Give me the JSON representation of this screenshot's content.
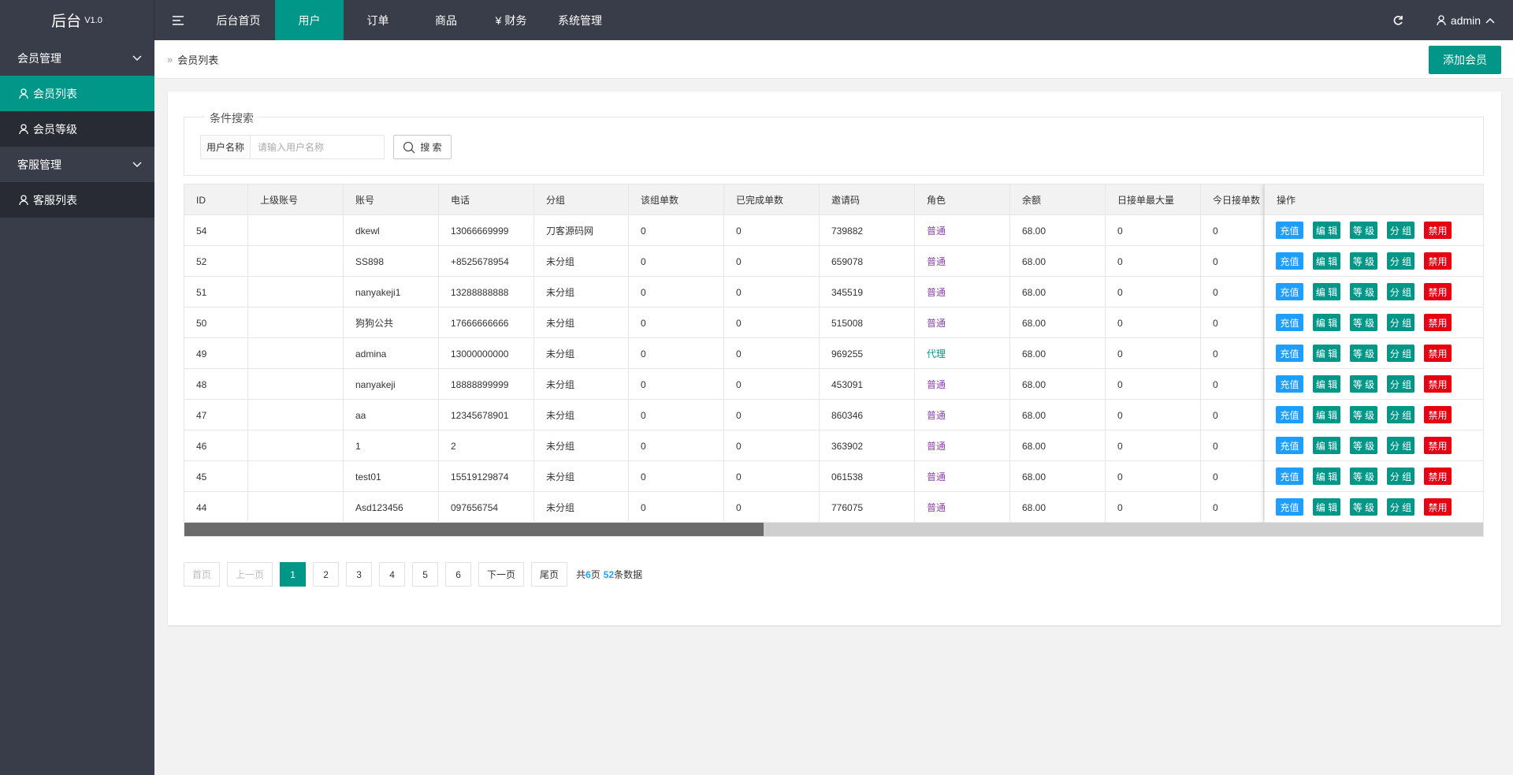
{
  "header": {
    "logo": "后台",
    "version": "V1.0",
    "nav": [
      "后台首页",
      "用户",
      "订单",
      "商品",
      "¥ 财务",
      "系统管理"
    ],
    "user": "admin"
  },
  "sidebar": [
    {
      "label": "会员管理",
      "items": [
        "会员列表",
        "会员等级"
      ]
    },
    {
      "label": "客服管理",
      "items": [
        "客服列表"
      ]
    }
  ],
  "breadcrumb": "会员列表",
  "add_button": "添加会员",
  "search": {
    "legend": "条件搜索",
    "label": "用户名称",
    "placeholder": "请输入用户名称",
    "button": "搜 索"
  },
  "table": {
    "columns": [
      "ID",
      "上级账号",
      "账号",
      "电话",
      "分组",
      "该组单数",
      "已完成单数",
      "邀请码",
      "角色",
      "余额",
      "日接单最大量",
      "今日接单数",
      "操作"
    ],
    "rows": [
      [
        "54",
        null,
        "dkewl",
        "13066669999",
        "刀客源码网",
        "0",
        "0",
        "739882",
        "普通",
        "68.00",
        "0",
        "0"
      ],
      [
        "52",
        null,
        "SS898",
        "+8525678954",
        "未分组",
        "0",
        "0",
        "659078",
        "普通",
        "68.00",
        "0",
        "0"
      ],
      [
        "51",
        null,
        "nanyakeji1",
        "13288888888",
        "未分组",
        "0",
        "0",
        "345519",
        "普通",
        "68.00",
        "0",
        "0"
      ],
      [
        "50",
        null,
        "狗狗公共",
        "17666666666",
        "未分组",
        "0",
        "0",
        "515008",
        "普通",
        "68.00",
        "0",
        "0"
      ],
      [
        "49",
        null,
        "admina",
        "13000000000",
        "未分组",
        "0",
        "0",
        "969255",
        "代理",
        "68.00",
        "0",
        "0"
      ],
      [
        "48",
        null,
        "nanyakeji",
        "18888899999",
        "未分组",
        "0",
        "0",
        "453091",
        "普通",
        "68.00",
        "0",
        "0"
      ],
      [
        "47",
        null,
        "aa",
        "12345678901",
        "未分组",
        "0",
        "0",
        "860346",
        "普通",
        "68.00",
        "0",
        "0"
      ],
      [
        "46",
        null,
        "1",
        "2",
        "未分组",
        "0",
        "0",
        "363902",
        "普通",
        "68.00",
        "0",
        "0"
      ],
      [
        "45",
        null,
        "test01",
        "15519129874",
        "未分组",
        "0",
        "0",
        "061538",
        "普通",
        "68.00",
        "0",
        "0"
      ],
      [
        "44",
        null,
        "Asd123456",
        "097656754",
        "未分组",
        "0",
        "0",
        "776075",
        "普通",
        "68.00",
        "0",
        "0"
      ]
    ],
    "actions": [
      "充值",
      "编 辑",
      "等 级",
      "分 组",
      "禁用"
    ]
  },
  "pagination": {
    "first": "首页",
    "prev": "上一页",
    "pages": [
      "1",
      "2",
      "3",
      "4",
      "5",
      "6"
    ],
    "next": "下一页",
    "last": "尾页",
    "summary_prefix": "共",
    "total_pages": "6",
    "pages_suffix": "页",
    "total_records": "52",
    "records_suffix": "条数据"
  }
}
